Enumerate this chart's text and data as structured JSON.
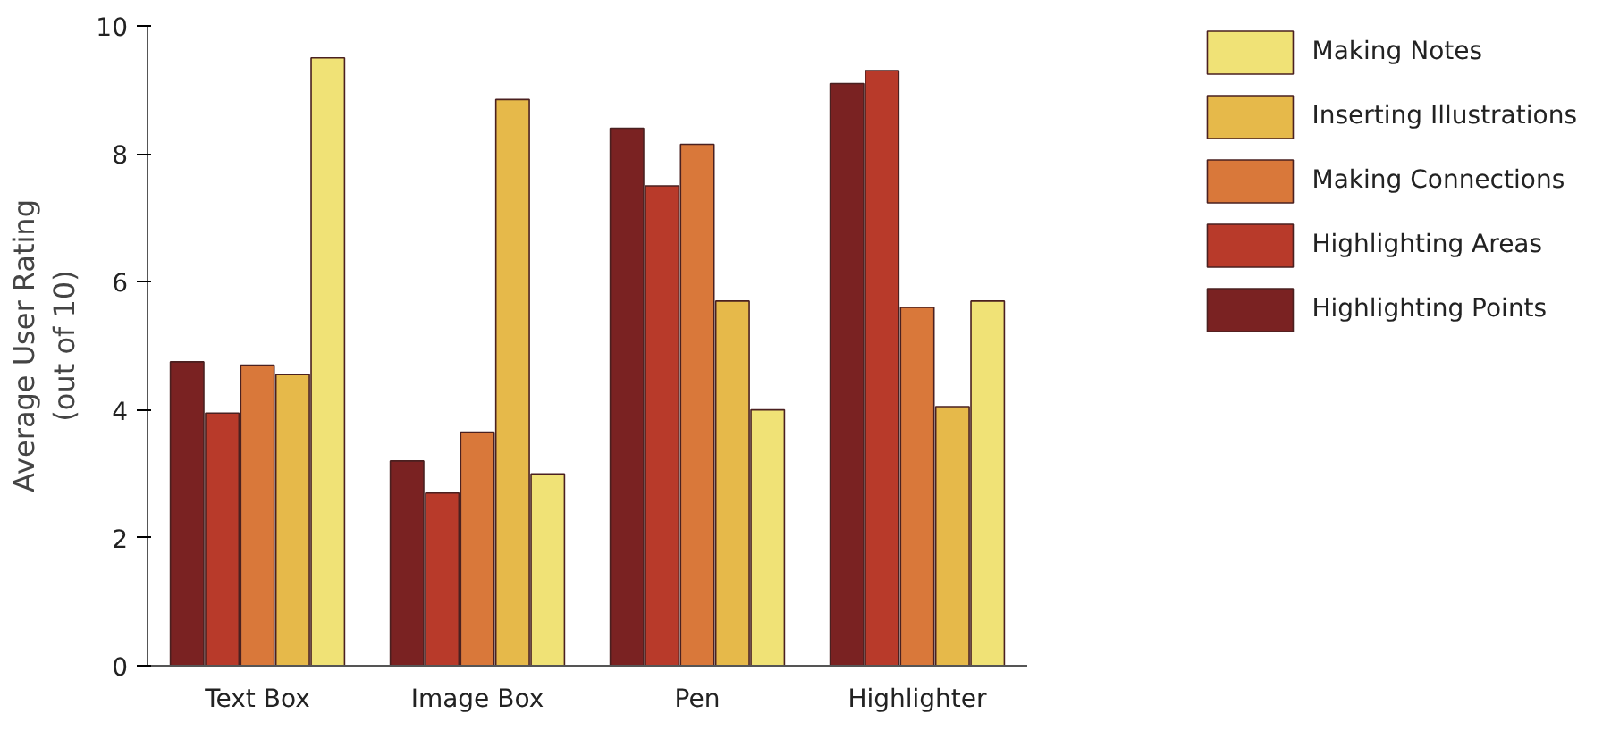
{
  "chart_data": {
    "type": "bar",
    "ylabel": "Average User Rating\n(out of 10)",
    "categories": [
      "Text Box",
      "Image Box",
      "Pen",
      "Highlighter"
    ],
    "series": [
      {
        "name": "Highlighting Points",
        "color": "#7a2222",
        "values": [
          4.75,
          3.2,
          8.4,
          9.1
        ]
      },
      {
        "name": "Highlighting Areas",
        "color": "#b83a2a",
        "values": [
          3.95,
          2.7,
          7.5,
          9.3
        ]
      },
      {
        "name": "Making Connections",
        "color": "#d9783a",
        "values": [
          4.7,
          3.65,
          8.15,
          5.6
        ]
      },
      {
        "name": "Inserting Illustrations",
        "color": "#e6b94a",
        "values": [
          4.55,
          8.85,
          5.7,
          4.05
        ]
      },
      {
        "name": "Making Notes",
        "color": "#f0e276",
        "values": [
          9.5,
          3.0,
          4.0,
          5.7
        ]
      }
    ],
    "ylim": [
      0,
      10
    ],
    "yticks": [
      0,
      2,
      4,
      6,
      8,
      10
    ],
    "grid": false,
    "legend": "right"
  }
}
